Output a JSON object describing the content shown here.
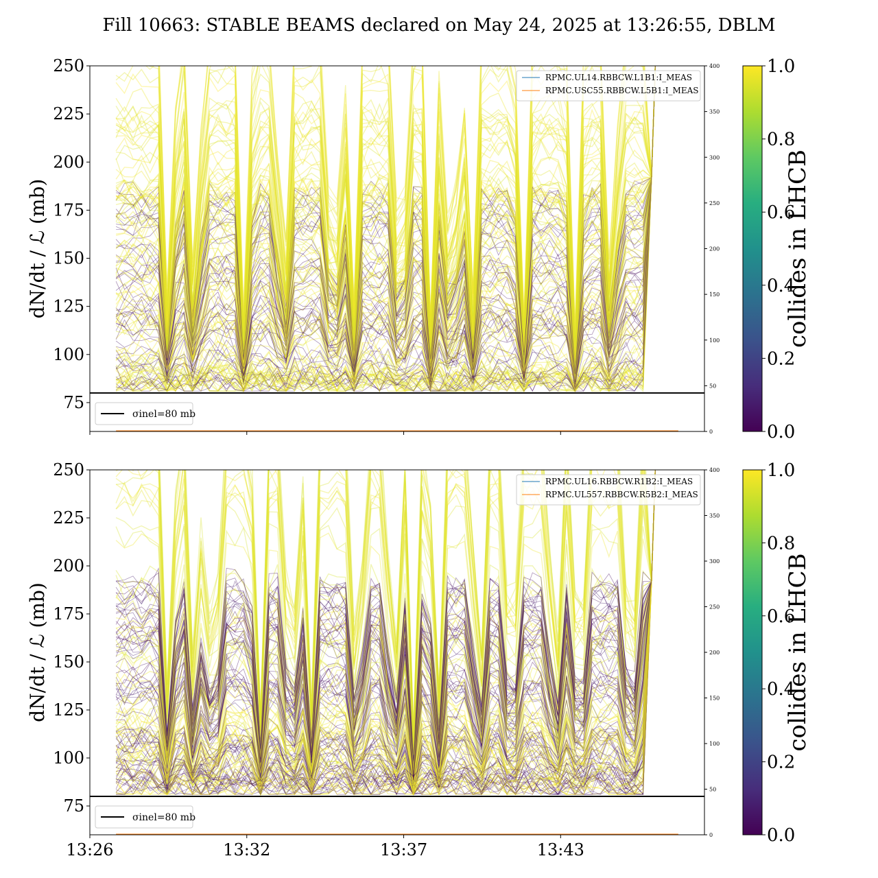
{
  "title": "Fill 10663: STABLE BEAMS declared on May 24, 2025 at 13:26:55, DBLM",
  "chart_data": [
    {
      "type": "line",
      "panel": "top",
      "ylabel": "dN/dt / ℒ (mb)",
      "ylim": [
        60,
        250
      ],
      "yticks": [
        75,
        100,
        125,
        150,
        175,
        200,
        225,
        250
      ],
      "y2lim": [
        0,
        400
      ],
      "y2ticks": [
        0,
        50,
        100,
        150,
        200,
        250,
        300,
        350,
        400
      ],
      "xlim_min": [
        0.0,
        23.5
      ],
      "xticks": [
        {
          "label": "13:26",
          "t": 0
        },
        {
          "label": "13:32",
          "t": 6
        },
        {
          "label": "13:37",
          "t": 12
        },
        {
          "label": "13:43",
          "t": 18
        }
      ],
      "show_xtick_labels": false,
      "hline": {
        "y": 80,
        "label": "σinel=80 mb",
        "color": "#000000"
      },
      "legend": {
        "placement": "upper-right",
        "entries": [
          {
            "label": "RPMC.UL14.RBBCW.L1B1:I_MEAS",
            "color": "#1f77b4"
          },
          {
            "label": "RPMC.USC55.RBBCW.L5B1:I_MEAS",
            "color": "#ff7f0e"
          }
        ]
      },
      "colorbar": {
        "label": "collides in LHCB",
        "range": [
          0,
          1
        ],
        "ticks": [
          "0.0",
          "0.2",
          "0.4",
          "0.6",
          "0.8",
          "1.0"
        ],
        "colormap": "viridis"
      },
      "noncolliding_fraction": 0.28,
      "seed": 7
    },
    {
      "type": "line",
      "panel": "bottom",
      "ylabel": "dN/dt / ℒ (mb)",
      "ylim": [
        60,
        250
      ],
      "yticks": [
        75,
        100,
        125,
        150,
        175,
        200,
        225,
        250
      ],
      "y2lim": [
        0,
        400
      ],
      "y2ticks": [
        0,
        50,
        100,
        150,
        200,
        250,
        300,
        350,
        400
      ],
      "xlim_min": [
        0.0,
        23.5
      ],
      "xticks": [
        {
          "label": "13:26",
          "t": 0
        },
        {
          "label": "13:32",
          "t": 6
        },
        {
          "label": "13:37",
          "t": 12
        },
        {
          "label": "13:43",
          "t": 18
        }
      ],
      "show_xtick_labels": true,
      "hline": {
        "y": 80,
        "label": "σinel=80 mb",
        "color": "#000000"
      },
      "legend": {
        "placement": "upper-right",
        "entries": [
          {
            "label": "RPMC.UL16.RBBCW.R1B2:I_MEAS",
            "color": "#1f77b4"
          },
          {
            "label": "RPMC.UL557.RBBCW.R5B2:I_MEAS",
            "color": "#ff7f0e"
          }
        ]
      },
      "colorbar": {
        "label": "collides in LHCB",
        "range": [
          0,
          1
        ],
        "ticks": [
          "0.0",
          "0.2",
          "0.4",
          "0.6",
          "0.8",
          "1.0"
        ],
        "colormap": "viridis"
      },
      "noncolliding_fraction": 0.42,
      "seed": 19
    }
  ]
}
